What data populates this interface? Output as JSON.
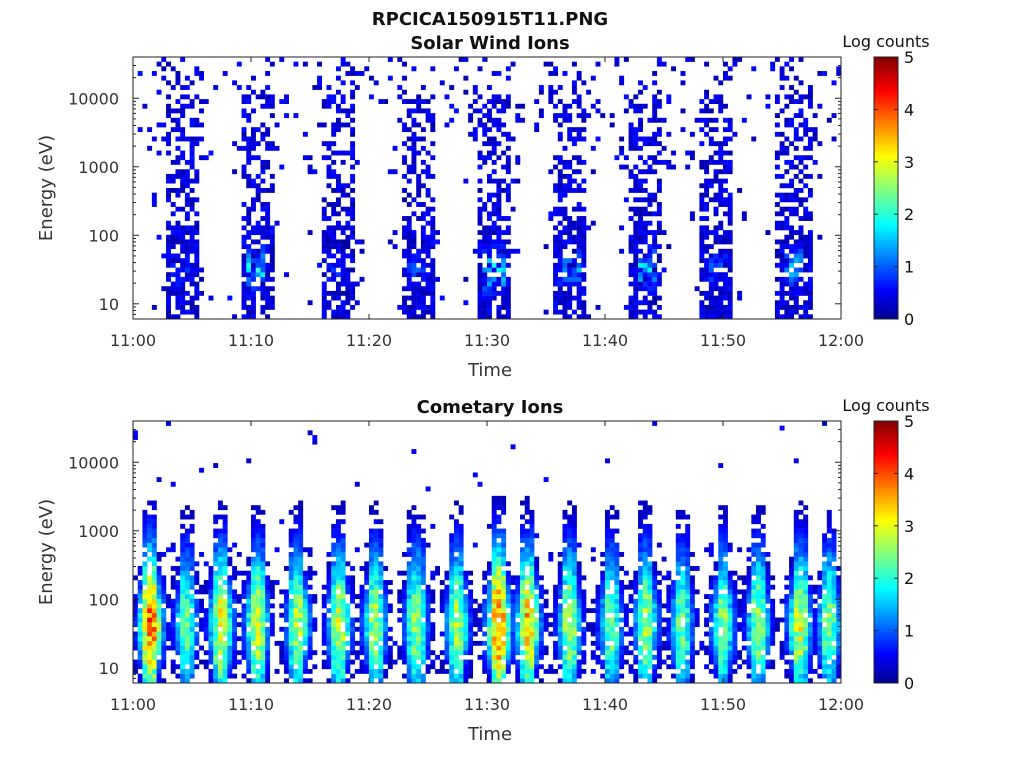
{
  "figure": {
    "filename_title": "RPCICA150915T11.PNG"
  },
  "chart_data": [
    {
      "type": "heatmap",
      "title": "Solar Wind Ions",
      "xlabel": "Time",
      "ylabel": "Energy (eV)",
      "x_ticks": [
        "11:00",
        "11:10",
        "11:20",
        "11:30",
        "11:40",
        "11:50",
        "12:00"
      ],
      "x_range": [
        "11:00",
        "12:00"
      ],
      "y_scale": "log",
      "y_ticks": [
        10,
        100,
        1000,
        10000
      ],
      "y_tick_labels": [
        "10",
        "100",
        "1000",
        "10000"
      ],
      "ylim": [
        6,
        40000
      ],
      "colorbar": {
        "label": "Log counts",
        "range": [
          0,
          5
        ],
        "ticks": [
          "0",
          "1",
          "2",
          "3",
          "4",
          "5"
        ],
        "colormap": "jet"
      },
      "sweep_centers_min": [
        4,
        10.5,
        17.5,
        24,
        30.5,
        37,
        43.5,
        49.5,
        56
      ],
      "sweep_peak_log_counts": [
        1.2,
        2.1,
        1.0,
        1.1,
        2.3,
        1.5,
        1.9,
        1.2,
        1.8
      ],
      "sweep_peak_energy_eV": 30,
      "background_log_counts": 0.3
    },
    {
      "type": "heatmap",
      "title": "Cometary Ions",
      "xlabel": "Time",
      "ylabel": "Energy (eV)",
      "x_ticks": [
        "11:00",
        "11:10",
        "11:20",
        "11:30",
        "11:40",
        "11:50",
        "12:00"
      ],
      "x_range": [
        "11:00",
        "12:00"
      ],
      "y_scale": "log",
      "y_ticks": [
        10,
        100,
        1000,
        10000
      ],
      "y_tick_labels": [
        "10",
        "100",
        "1000",
        "10000"
      ],
      "ylim": [
        6,
        40000
      ],
      "colorbar": {
        "label": "Log counts",
        "range": [
          0,
          5
        ],
        "ticks": [
          "0",
          "1",
          "2",
          "3",
          "4",
          "5"
        ],
        "colormap": "jet"
      },
      "blob_centers_min": [
        1.5,
        4.5,
        7.5,
        10.5,
        14,
        17.5,
        20.5,
        24,
        27.5,
        31,
        33.5,
        37,
        40.5,
        43.5,
        46.5,
        50,
        53,
        56.5,
        59
      ],
      "blob_peak_log_counts": [
        3.8,
        2.3,
        3.1,
        3.0,
        2.8,
        2.9,
        2.7,
        2.6,
        2.7,
        3.9,
        3.4,
        2.8,
        2.5,
        2.7,
        2.4,
        2.6,
        2.6,
        2.9,
        2.5
      ],
      "blob_peak_energy_eV": 40
    }
  ]
}
